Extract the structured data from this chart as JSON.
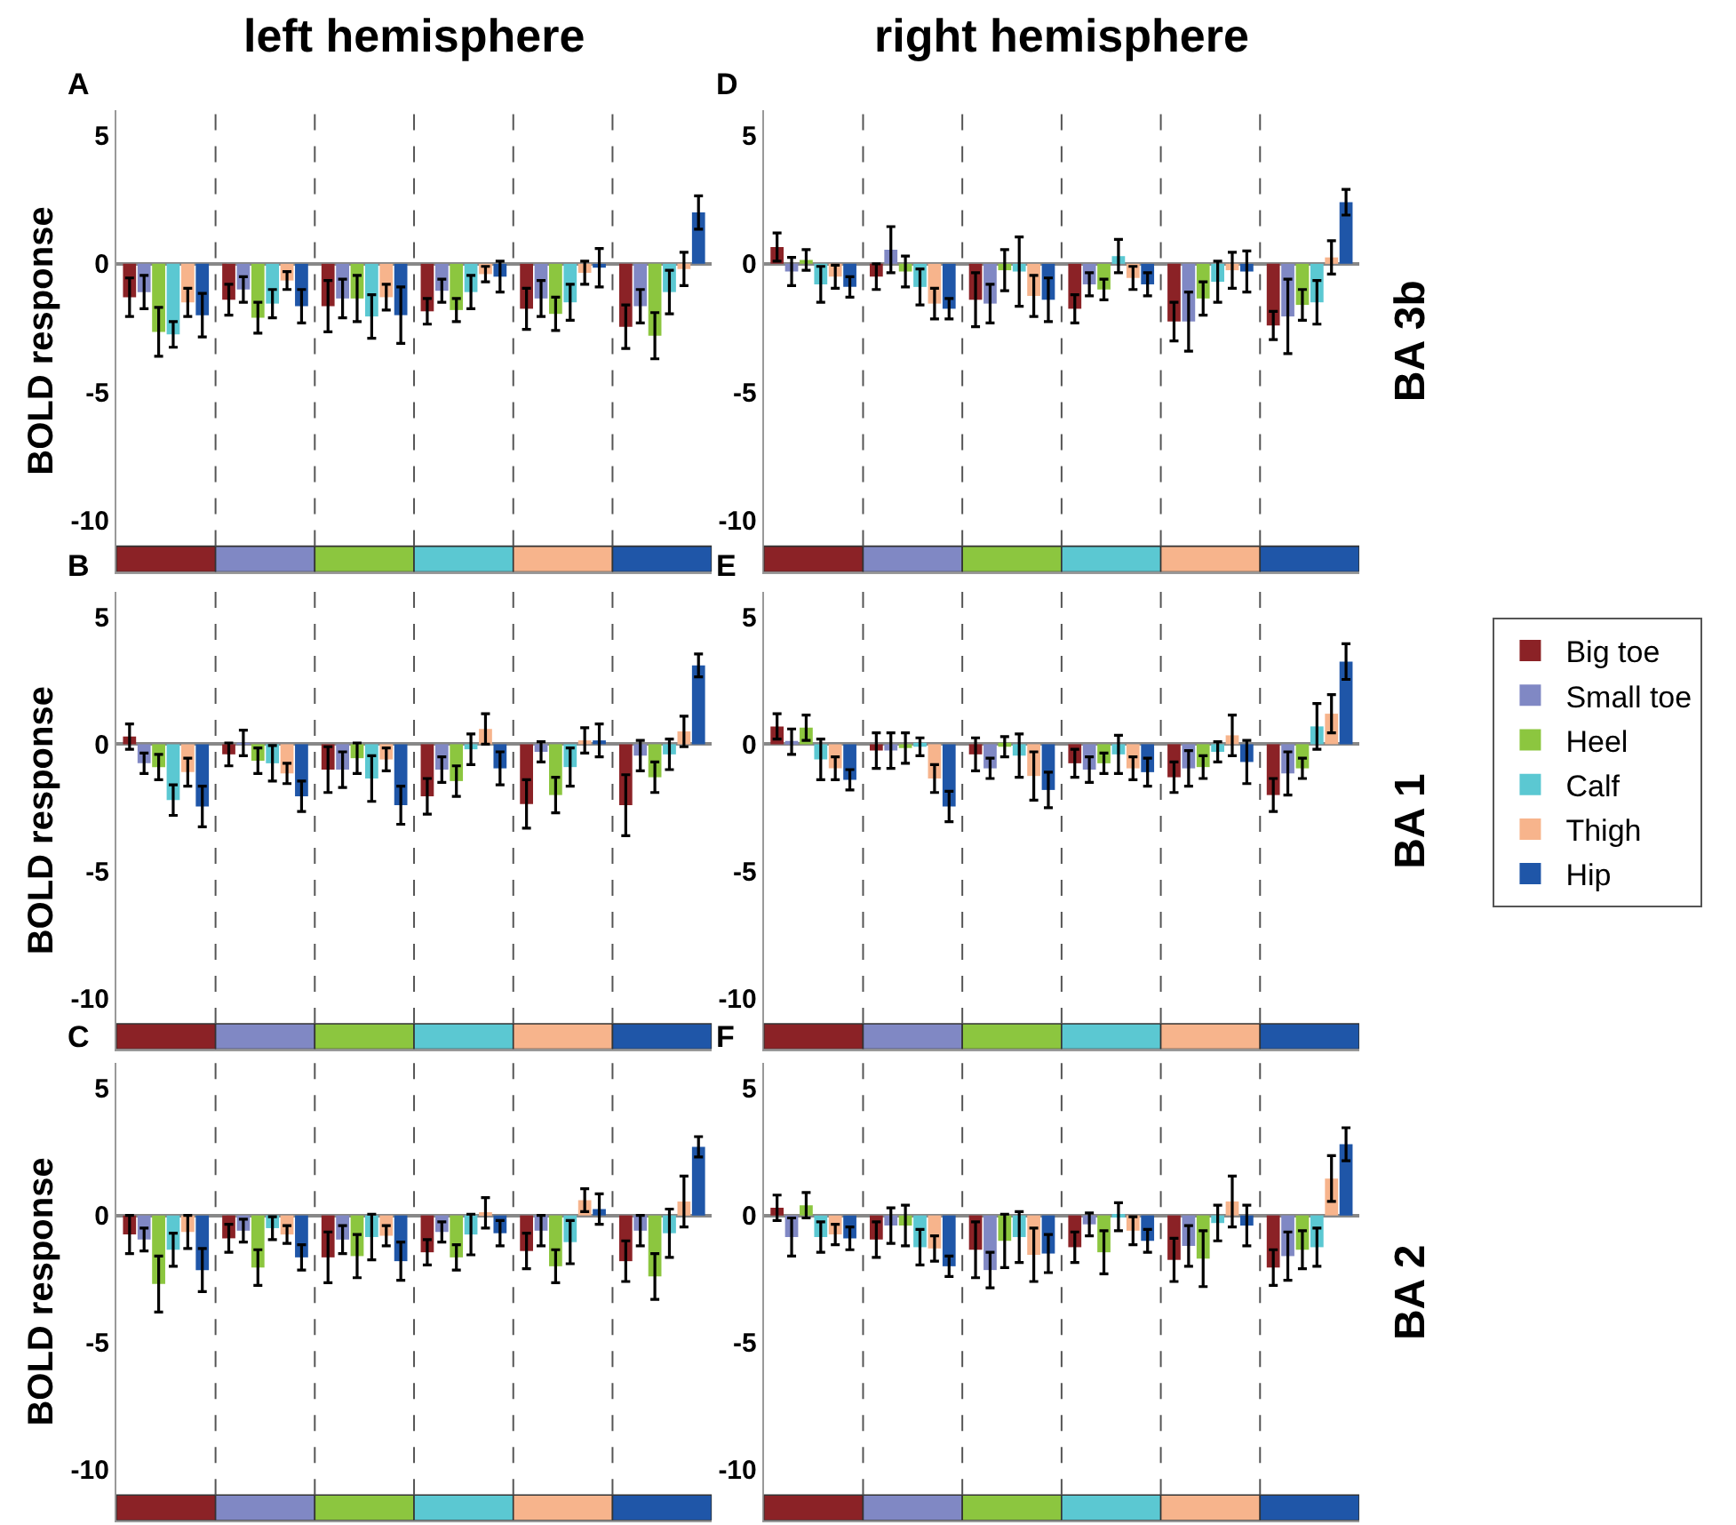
{
  "chart_data": [
    {
      "type": "bar",
      "title": "left hemisphere",
      "ylabel": "BOLD response",
      "annotations": [
        "A"
      ],
      "categories": [
        null,
        null,
        null,
        null,
        null,
        null
      ],
      "ylim": [
        -12,
        6
      ],
      "yticks": [
        5,
        0,
        -5,
        -10
      ],
      "tick_labels": "y",
      "series": [
        {
          "color": "#8b2226",
          "values": [
            -1.3,
            -1.4,
            -1.65,
            -1.85,
            -1.75,
            -2.45
          ],
          "errors": [
            0.75,
            0.6,
            1.0,
            0.5,
            0.8,
            0.85
          ]
        },
        {
          "color": "#8088c4",
          "values": [
            -1.1,
            -1.0,
            -1.35,
            -1.05,
            -1.35,
            -1.65
          ],
          "errors": [
            0.65,
            0.5,
            0.75,
            0.45,
            0.7,
            0.65
          ]
        },
        {
          "color": "#8cc63f",
          "values": [
            -2.65,
            -2.1,
            -1.35,
            -1.8,
            -1.95,
            -2.8
          ],
          "errors": [
            0.95,
            0.6,
            0.9,
            0.45,
            0.65,
            0.9
          ]
        },
        {
          "color": "#5bc8d2",
          "values": [
            -2.75,
            -1.55,
            -2.05,
            -1.1,
            -1.5,
            -1.1
          ],
          "errors": [
            0.5,
            0.55,
            0.85,
            0.65,
            0.7,
            0.85
          ]
        },
        {
          "color": "#f7b48c",
          "values": [
            -1.5,
            -0.65,
            -1.3,
            -0.4,
            -0.35,
            -0.2
          ],
          "errors": [
            0.55,
            0.35,
            0.5,
            0.3,
            0.45,
            0.65
          ]
        },
        {
          "color": "#1f56a8",
          "values": [
            -2.0,
            -1.65,
            -2.0,
            -0.5,
            -0.15,
            2.0
          ],
          "errors": [
            0.85,
            0.65,
            1.1,
            0.6,
            0.75,
            0.65
          ]
        }
      ]
    },
    {
      "type": "bar",
      "ylabel": "BOLD response",
      "annotations": [
        "B"
      ],
      "categories": [
        null,
        null,
        null,
        null,
        null,
        null
      ],
      "ylim": [
        -12,
        6
      ],
      "yticks": [
        5,
        0,
        -5,
        -10
      ],
      "tick_labels": "y",
      "series": [
        {
          "color": "#8b2226",
          "values": [
            0.3,
            -0.4,
            -1.0,
            -2.05,
            -2.35,
            -2.4
          ],
          "errors": [
            0.5,
            0.45,
            0.9,
            0.7,
            0.95,
            1.2
          ]
        },
        {
          "color": "#8088c4",
          "values": [
            -0.75,
            0.05,
            -1.0,
            -1.0,
            -0.3,
            -0.45
          ],
          "errors": [
            0.4,
            0.5,
            0.7,
            0.5,
            0.4,
            0.6
          ]
        },
        {
          "color": "#8cc63f",
          "values": [
            -0.9,
            -0.65,
            -0.55,
            -1.45,
            -2.0,
            -1.3
          ],
          "errors": [
            0.5,
            0.5,
            0.6,
            0.6,
            0.7,
            0.6
          ]
        },
        {
          "color": "#5bc8d2",
          "values": [
            -2.2,
            -0.75,
            -1.35,
            -0.2,
            -0.9,
            -0.4
          ],
          "errors": [
            0.6,
            0.7,
            0.9,
            0.6,
            0.75,
            0.6
          ]
        },
        {
          "color": "#f7b48c",
          "values": [
            -1.1,
            -1.15,
            -0.6,
            0.6,
            0.15,
            0.5
          ],
          "errors": [
            0.55,
            0.4,
            0.45,
            0.6,
            0.5,
            0.6
          ]
        },
        {
          "color": "#1f56a8",
          "values": [
            -2.45,
            -2.05,
            -2.4,
            -0.95,
            0.15,
            3.1
          ],
          "errors": [
            0.8,
            0.6,
            0.75,
            0.65,
            0.65,
            0.45
          ]
        }
      ]
    },
    {
      "type": "bar",
      "ylabel": "BOLD response",
      "annotations": [
        "C"
      ],
      "categories": [
        null,
        null,
        null,
        null,
        null,
        null
      ],
      "ylim": [
        -12,
        6
      ],
      "yticks": [
        5,
        0,
        -5,
        -10
      ],
      "tick_labels": "y",
      "series": [
        {
          "color": "#8b2226",
          "values": [
            -0.75,
            -0.9,
            -1.65,
            -1.45,
            -1.4,
            -1.8
          ],
          "errors": [
            0.75,
            0.55,
            1.0,
            0.5,
            0.7,
            0.8
          ]
        },
        {
          "color": "#8088c4",
          "values": [
            -0.95,
            -0.6,
            -0.95,
            -0.65,
            -0.6,
            -0.6
          ],
          "errors": [
            0.45,
            0.45,
            0.55,
            0.4,
            0.6,
            0.6
          ]
        },
        {
          "color": "#8cc63f",
          "values": [
            -2.7,
            -2.05,
            -1.6,
            -1.65,
            -2.0,
            -2.4
          ],
          "errors": [
            1.1,
            0.7,
            0.85,
            0.5,
            0.65,
            0.9
          ]
        },
        {
          "color": "#5bc8d2",
          "values": [
            -1.35,
            -0.5,
            -0.85,
            -0.75,
            -1.05,
            -0.7
          ],
          "errors": [
            0.65,
            0.45,
            0.9,
            0.8,
            0.85,
            0.95
          ]
        },
        {
          "color": "#f7b48c",
          "values": [
            -0.65,
            -0.75,
            -0.8,
            0.1,
            0.6,
            0.55
          ],
          "errors": [
            0.65,
            0.35,
            0.4,
            0.6,
            0.45,
            1.0
          ]
        },
        {
          "color": "#1f56a8",
          "values": [
            -2.15,
            -1.65,
            -1.8,
            -0.7,
            0.25,
            2.7
          ],
          "errors": [
            0.85,
            0.5,
            0.75,
            0.5,
            0.6,
            0.4
          ]
        }
      ]
    },
    {
      "type": "bar",
      "title": "right hemisphere",
      "annotations": [
        "D",
        "BA 3b"
      ],
      "categories": [
        null,
        null,
        null,
        null,
        null,
        null
      ],
      "ylim": [
        -12,
        6
      ],
      "yticks": [
        5,
        0,
        -5,
        -10
      ],
      "tick_labels": "y",
      "series": [
        {
          "color": "#8b2226",
          "values": [
            0.65,
            -0.5,
            -1.4,
            -1.75,
            -2.25,
            -2.4
          ],
          "errors": [
            0.55,
            0.5,
            1.05,
            0.55,
            0.75,
            0.55
          ]
        },
        {
          "color": "#8088c4",
          "values": [
            -0.3,
            0.55,
            -1.55,
            -0.8,
            -2.25,
            -2.05
          ],
          "errors": [
            0.55,
            0.9,
            0.75,
            0.45,
            1.15,
            1.45
          ]
        },
        {
          "color": "#8cc63f",
          "values": [
            0.15,
            -0.3,
            -0.25,
            -1.0,
            -1.35,
            -1.6
          ],
          "errors": [
            0.4,
            0.6,
            0.8,
            0.4,
            0.65,
            0.6
          ]
        },
        {
          "color": "#5bc8d2",
          "values": [
            -0.8,
            -0.9,
            -0.3,
            0.3,
            -0.7,
            -1.5
          ],
          "errors": [
            0.7,
            0.7,
            1.35,
            0.65,
            0.8,
            0.85
          ]
        },
        {
          "color": "#f7b48c",
          "values": [
            -0.5,
            -1.55,
            -1.25,
            -0.55,
            -0.25,
            0.25
          ],
          "errors": [
            0.45,
            0.6,
            0.8,
            0.45,
            0.7,
            0.65
          ]
        },
        {
          "color": "#1f56a8",
          "values": [
            -0.9,
            -1.75,
            -1.4,
            -0.8,
            -0.3,
            2.4
          ],
          "errors": [
            0.4,
            0.4,
            0.85,
            0.45,
            0.8,
            0.5
          ]
        }
      ]
    },
    {
      "type": "bar",
      "annotations": [
        "E",
        "BA 1"
      ],
      "categories": [
        null,
        null,
        null,
        null,
        null,
        null
      ],
      "ylim": [
        -12,
        6
      ],
      "yticks": [
        5,
        0,
        -5,
        -10
      ],
      "tick_labels": "y",
      "legend": "right",
      "series": [
        {
          "name": "Big toe",
          "color": "#8b2226",
          "values": [
            0.7,
            -0.25,
            -0.4,
            -0.75,
            -1.3,
            -2.0
          ],
          "errors": [
            0.5,
            0.7,
            0.65,
            0.55,
            0.6,
            0.65
          ]
        },
        {
          "name": "Small toe",
          "color": "#8088c4",
          "values": [
            0.1,
            -0.25,
            -0.95,
            -1.0,
            -0.95,
            -1.15
          ],
          "errors": [
            0.5,
            0.7,
            0.4,
            0.5,
            0.7,
            0.85
          ]
        },
        {
          "name": "Heel",
          "color": "#8cc63f",
          "values": [
            0.65,
            -0.15,
            -0.1,
            -0.75,
            -0.9,
            -0.95
          ],
          "errors": [
            0.5,
            0.6,
            0.4,
            0.4,
            0.45,
            0.4
          ]
        },
        {
          "name": "Calf",
          "color": "#5bc8d2",
          "values": [
            -0.6,
            -0.1,
            -0.45,
            -0.4,
            -0.3,
            0.7
          ],
          "errors": [
            0.8,
            0.35,
            0.85,
            0.75,
            0.4,
            0.9
          ]
        },
        {
          "name": "Thigh",
          "color": "#f7b48c",
          "values": [
            -0.95,
            -1.35,
            -1.25,
            -0.95,
            0.35,
            1.2
          ],
          "errors": [
            0.45,
            0.55,
            0.95,
            0.45,
            0.8,
            0.75
          ]
        },
        {
          "name": "Hip",
          "color": "#1f56a8",
          "values": [
            -1.4,
            -2.45,
            -1.8,
            -1.1,
            -0.7,
            3.25
          ],
          "errors": [
            0.4,
            0.6,
            0.7,
            0.55,
            0.85,
            0.7
          ]
        }
      ]
    },
    {
      "type": "bar",
      "annotations": [
        "F",
        "BA 2"
      ],
      "categories": [
        null,
        null,
        null,
        null,
        null,
        null
      ],
      "ylim": [
        -12,
        6
      ],
      "yticks": [
        5,
        0,
        -5,
        -10
      ],
      "tick_labels": "y",
      "series": [
        {
          "color": "#8b2226",
          "values": [
            0.3,
            -0.95,
            -1.35,
            -1.25,
            -1.75,
            -2.05
          ],
          "errors": [
            0.5,
            0.7,
            1.1,
            0.6,
            0.85,
            0.7
          ]
        },
        {
          "color": "#8088c4",
          "values": [
            -0.85,
            -0.4,
            -2.15,
            -0.35,
            -1.2,
            -1.6
          ],
          "errors": [
            0.75,
            0.7,
            0.7,
            0.45,
            0.8,
            0.95
          ]
        },
        {
          "color": "#8cc63f",
          "values": [
            0.4,
            -0.4,
            -1.0,
            -1.45,
            -1.7,
            -1.35
          ],
          "errors": [
            0.5,
            0.8,
            1.05,
            0.85,
            1.1,
            0.75
          ]
        },
        {
          "color": "#5bc8d2",
          "values": [
            -0.85,
            -1.25,
            -0.85,
            -0.05,
            -0.3,
            -1.25
          ],
          "errors": [
            0.6,
            0.7,
            1.0,
            0.55,
            0.7,
            0.75
          ]
        },
        {
          "color": "#f7b48c",
          "values": [
            -0.75,
            -1.3,
            -1.55,
            -0.6,
            0.55,
            1.45
          ],
          "errors": [
            0.4,
            0.5,
            1.05,
            0.55,
            1.0,
            0.9
          ]
        },
        {
          "color": "#1f56a8",
          "values": [
            -0.9,
            -2.0,
            -1.5,
            -1.0,
            -0.4,
            2.8
          ],
          "errors": [
            0.45,
            0.4,
            0.75,
            0.45,
            0.8,
            0.65
          ]
        }
      ]
    }
  ]
}
